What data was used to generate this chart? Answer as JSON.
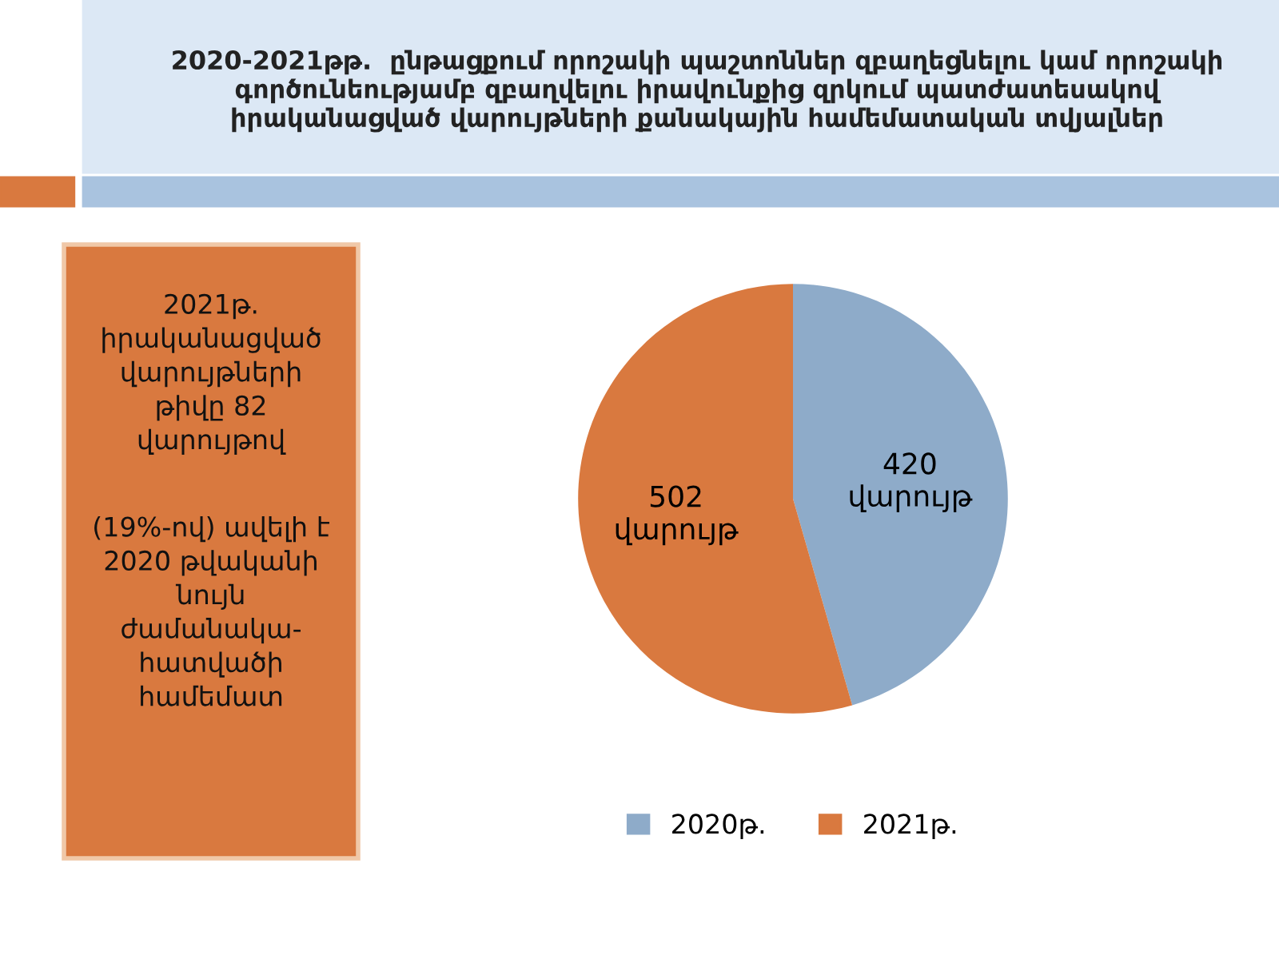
{
  "chart_data": {
    "type": "pie",
    "title": "2020-2021թթ.  ընթացքում որոշակի պաշտոններ զբաղեցնելու կամ որոշակի\nգործունեությամբ զբաղվելու իրավունքից զրկում պատժատեսակով\nիրականացված վարույթների քանակային համեմատական տվյալներ",
    "categories": [
      "2020թ.",
      "2021թ."
    ],
    "values": [
      420,
      502
    ],
    "value_labels": [
      "420\nվարույթ",
      "502\nվարույթ"
    ],
    "colors": [
      "#8eabc9",
      "#d9793f"
    ],
    "legend": "bottom",
    "annotations": [
      "2021թ.\nիրականացված\nվարույթների\nթիվը 82\nվարույթով",
      "(19%-ով) ավելի է\n2020 թվականի\nնույն\nժամանակա-\nհատվածի\nհամեմատ"
    ]
  }
}
